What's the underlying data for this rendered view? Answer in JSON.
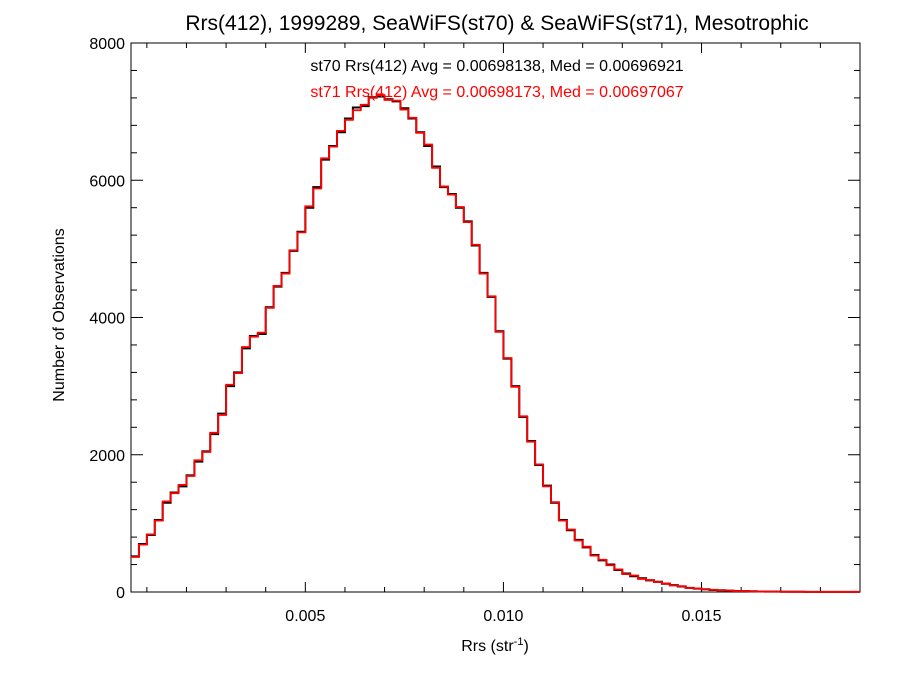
{
  "chart_data": {
    "type": "line",
    "step": true,
    "title": "Rrs(412), 1999289, SeaWiFS(st70) & SeaWiFS(st71), Mesotrophic",
    "xlabel_base": "Rrs (str",
    "xlabel_sup": "-1",
    "xlabel_end": ")",
    "ylabel": "Number of Observations",
    "xlim": [
      0.0006,
      0.019
    ],
    "ylim": [
      0,
      8000
    ],
    "xticks": [
      0.005,
      0.01,
      0.015
    ],
    "xtick_labels": [
      "0.005",
      "0.010",
      "0.015"
    ],
    "yticks": [
      0,
      2000,
      4000,
      6000,
      8000
    ],
    "ytick_labels": [
      "0",
      "2000",
      "4000",
      "6000",
      "8000"
    ],
    "grid": false,
    "annotations": [
      {
        "text": "st70 Rrs(412) Avg = 0.00698138, Med = 0.00696921",
        "color": "#000000"
      },
      {
        "text": "st71 Rrs(412) Avg = 0.00698173, Med = 0.00697067",
        "color": "#ff0000"
      }
    ],
    "series": [
      {
        "color": "#000000",
        "x": [
          0.0006,
          0.0008,
          0.001,
          0.0012,
          0.0014,
          0.0016,
          0.0018,
          0.002,
          0.0022,
          0.0024,
          0.0026,
          0.0028,
          0.003,
          0.0032,
          0.0034,
          0.0036,
          0.0038,
          0.004,
          0.0042,
          0.0044,
          0.0046,
          0.0048,
          0.005,
          0.0052,
          0.0054,
          0.0056,
          0.0058,
          0.006,
          0.0062,
          0.0064,
          0.0066,
          0.0068,
          0.007,
          0.0072,
          0.0074,
          0.0076,
          0.0078,
          0.008,
          0.0082,
          0.0084,
          0.0086,
          0.0088,
          0.009,
          0.0092,
          0.0094,
          0.0096,
          0.0098,
          0.01,
          0.0102,
          0.0104,
          0.0106,
          0.0108,
          0.011,
          0.0112,
          0.0114,
          0.0116,
          0.0118,
          0.012,
          0.0122,
          0.0124,
          0.0126,
          0.0128,
          0.013,
          0.0132,
          0.0134,
          0.0136,
          0.0138,
          0.014,
          0.0142,
          0.0144,
          0.0146,
          0.0148,
          0.015,
          0.0152,
          0.0154,
          0.0156,
          0.0158,
          0.016,
          0.0162,
          0.0164,
          0.0166,
          0.0168,
          0.017,
          0.0172,
          0.0174,
          0.0176,
          0.0178,
          0.018,
          0.0182,
          0.0184,
          0.0186,
          0.0188
        ],
        "y": [
          520,
          700,
          830,
          1050,
          1300,
          1450,
          1540,
          1700,
          1900,
          2050,
          2300,
          2600,
          3000,
          3200,
          3550,
          3730,
          3760,
          4150,
          4450,
          4650,
          4970,
          5250,
          5600,
          5900,
          6300,
          6500,
          6700,
          6900,
          7060,
          7080,
          7210,
          7220,
          7180,
          7150,
          7050,
          6900,
          6700,
          6500,
          6200,
          5900,
          5800,
          5600,
          5400,
          5050,
          4650,
          4300,
          3800,
          3400,
          3000,
          2550,
          2200,
          1850,
          1550,
          1300,
          1050,
          900,
          760,
          650,
          540,
          460,
          400,
          320,
          270,
          230,
          200,
          170,
          150,
          120,
          100,
          80,
          60,
          50,
          40,
          30,
          25,
          20,
          15,
          12,
          10,
          8,
          6,
          5,
          4,
          3,
          3,
          2,
          2,
          1,
          1,
          1,
          1,
          1
        ]
      },
      {
        "color": "#ff0000",
        "x": [
          0.0006,
          0.0008,
          0.001,
          0.0012,
          0.0014,
          0.0016,
          0.0018,
          0.002,
          0.0022,
          0.0024,
          0.0026,
          0.0028,
          0.003,
          0.0032,
          0.0034,
          0.0036,
          0.0038,
          0.004,
          0.0042,
          0.0044,
          0.0046,
          0.0048,
          0.005,
          0.0052,
          0.0054,
          0.0056,
          0.0058,
          0.006,
          0.0062,
          0.0064,
          0.0066,
          0.0068,
          0.007,
          0.0072,
          0.0074,
          0.0076,
          0.0078,
          0.008,
          0.0082,
          0.0084,
          0.0086,
          0.0088,
          0.009,
          0.0092,
          0.0094,
          0.0096,
          0.0098,
          0.01,
          0.0102,
          0.0104,
          0.0106,
          0.0108,
          0.011,
          0.0112,
          0.0114,
          0.0116,
          0.0118,
          0.012,
          0.0122,
          0.0124,
          0.0126,
          0.0128,
          0.013,
          0.0132,
          0.0134,
          0.0136,
          0.0138,
          0.014,
          0.0142,
          0.0144,
          0.0146,
          0.0148,
          0.015,
          0.0152,
          0.0154,
          0.0156,
          0.0158,
          0.016,
          0.0162,
          0.0164,
          0.0166,
          0.0168,
          0.017,
          0.0172,
          0.0174,
          0.0176,
          0.0178,
          0.018,
          0.0182,
          0.0184,
          0.0186,
          0.0188
        ],
        "y": [
          510,
          690,
          840,
          1040,
          1320,
          1440,
          1560,
          1690,
          1920,
          2040,
          2320,
          2580,
          3020,
          3190,
          3570,
          3720,
          3780,
          4140,
          4460,
          4640,
          4980,
          5240,
          5620,
          5880,
          6320,
          6490,
          6720,
          6880,
          7020,
          7100,
          7200,
          7240,
          7170,
          7160,
          7030,
          6910,
          6690,
          6520,
          6180,
          5910,
          5790,
          5610,
          5390,
          5060,
          4640,
          4310,
          3790,
          3410,
          2990,
          2560,
          2190,
          1860,
          1540,
          1310,
          1040,
          910,
          750,
          660,
          530,
          470,
          390,
          330,
          260,
          240,
          190,
          175,
          145,
          125,
          95,
          85,
          58,
          52,
          38,
          32,
          24,
          21,
          14,
          13,
          9,
          8,
          6,
          5,
          4,
          3,
          3,
          2,
          2,
          1,
          1,
          1,
          1,
          1
        ]
      }
    ]
  }
}
